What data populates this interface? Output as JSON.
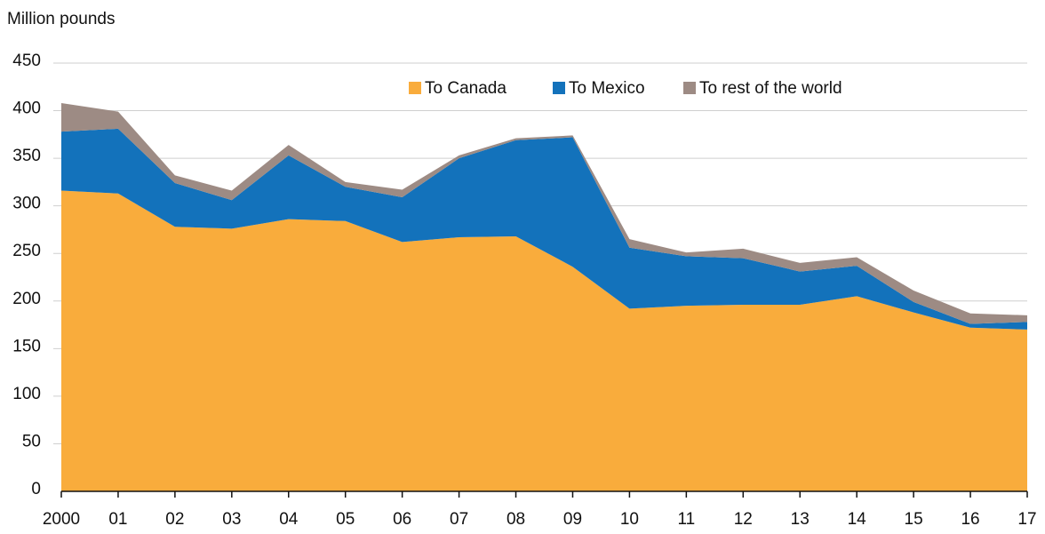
{
  "chart_data": {
    "type": "stacked_area",
    "y_axis_label": "Million pounds",
    "categories": [
      "2000",
      "01",
      "02",
      "03",
      "04",
      "05",
      "06",
      "07",
      "08",
      "09",
      "10",
      "11",
      "12",
      "13",
      "14",
      "15",
      "16",
      "17"
    ],
    "series": [
      {
        "name": "To Canada",
        "color": "#f9ac3c",
        "values": [
          316,
          313,
          278,
          276,
          286,
          284,
          262,
          267,
          268,
          236,
          192,
          195,
          196,
          196,
          205,
          188,
          172,
          170
        ]
      },
      {
        "name": "To Mexico",
        "color": "#1372bb",
        "values": [
          62,
          68,
          46,
          30,
          67,
          36,
          47,
          83,
          101,
          136,
          64,
          52,
          49,
          35,
          32,
          11,
          4,
          8
        ]
      },
      {
        "name": "To rest of the world",
        "color": "#9d8b84",
        "values": [
          30,
          18,
          8,
          10,
          11,
          5,
          8,
          3,
          2,
          2,
          9,
          4,
          10,
          9,
          9,
          12,
          11,
          7
        ]
      }
    ],
    "ylim": [
      0,
      450
    ],
    "yticks": [
      0,
      50,
      100,
      150,
      200,
      250,
      300,
      350,
      400,
      450
    ],
    "grid": true,
    "legend": "top"
  }
}
